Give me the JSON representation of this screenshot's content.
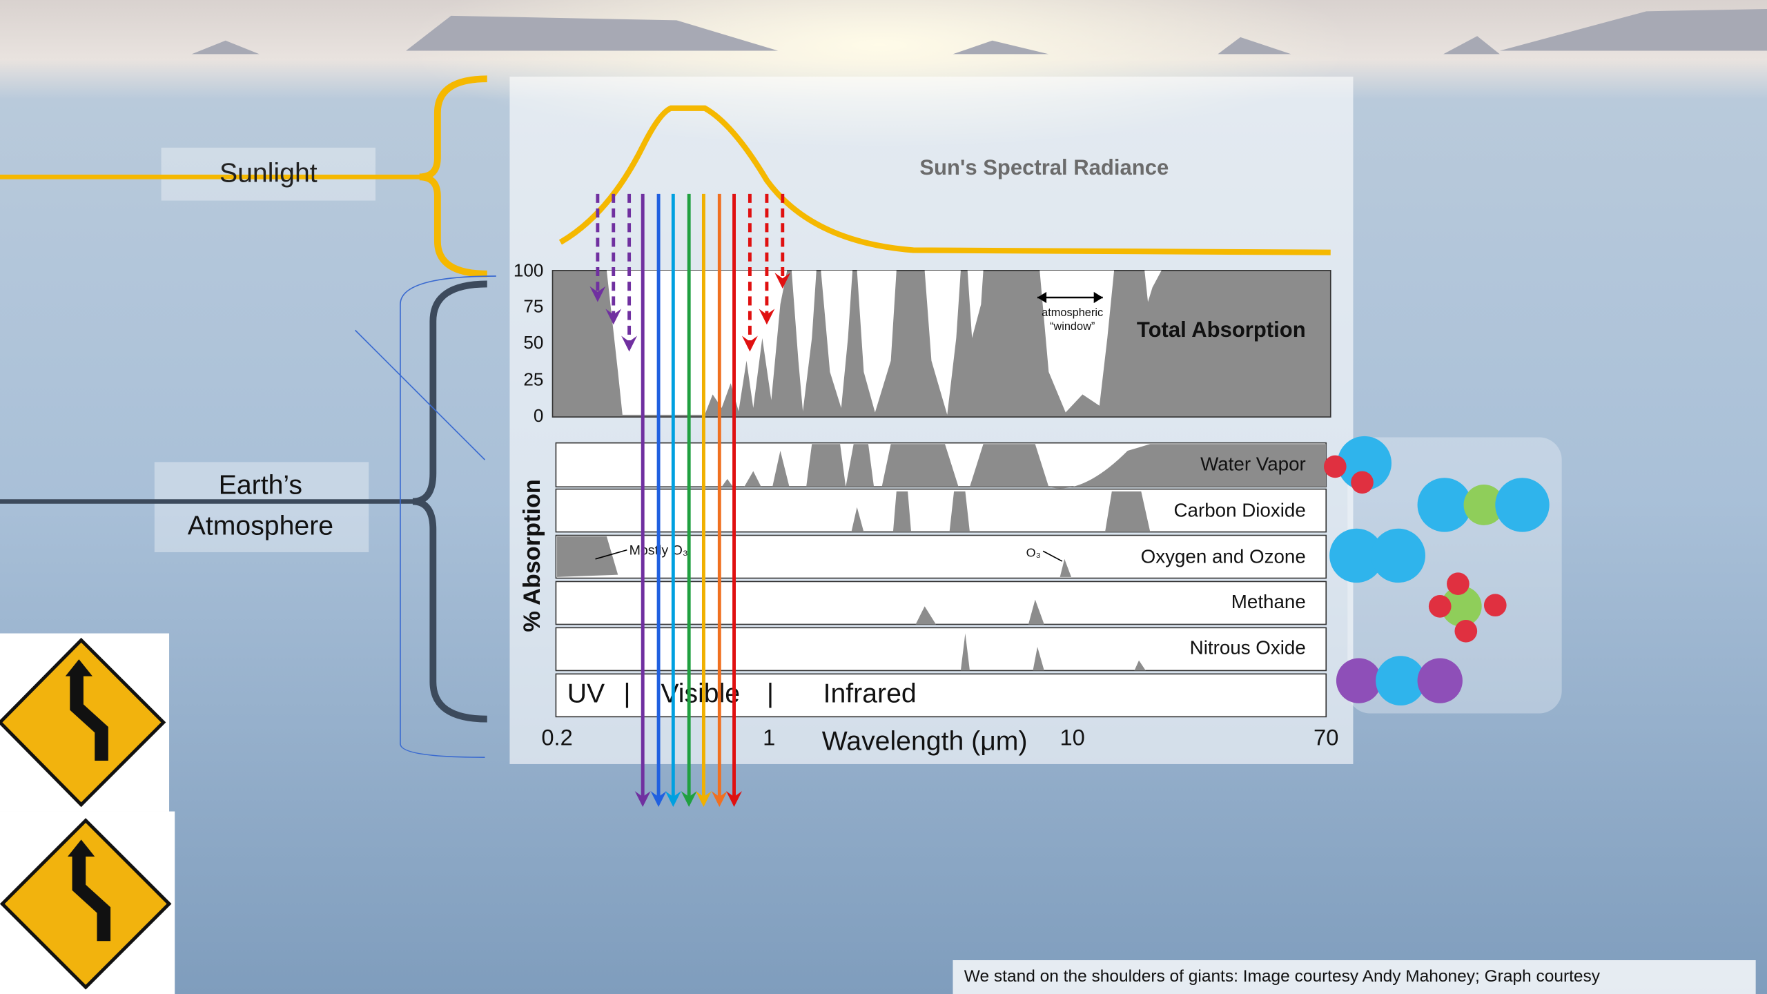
{
  "labels": {
    "sunlight": "Sunlight",
    "atmosphere": [
      "Earth’s",
      "Atmosphere"
    ]
  },
  "radiance_title": "Sun's Spectral Radiance",
  "total_absorption": {
    "title": "Total Absorption",
    "yticks": [
      "100",
      "75",
      "50",
      "25",
      "0"
    ],
    "window_label": [
      "atmospheric",
      "“window”"
    ]
  },
  "y_axis_label": "% Absorption",
  "gases": [
    {
      "name": "Water Vapor"
    },
    {
      "name": "Carbon Dioxide"
    },
    {
      "name": "Oxygen and Ozone",
      "annotations": [
        "Mostly O₃",
        "O₃"
      ]
    },
    {
      "name": "Methane"
    },
    {
      "name": "Nitrous Oxide"
    }
  ],
  "bands": [
    "UV",
    "|",
    "Visible",
    "|",
    "Infrared"
  ],
  "x_axis": {
    "label": "Wavelength (μm)",
    "ticks": [
      "0.2",
      "1",
      "10",
      "70"
    ]
  },
  "caption": "We stand on the shoulders of giants: Image courtesy Andy Mahoney; Graph courtesy"
}
